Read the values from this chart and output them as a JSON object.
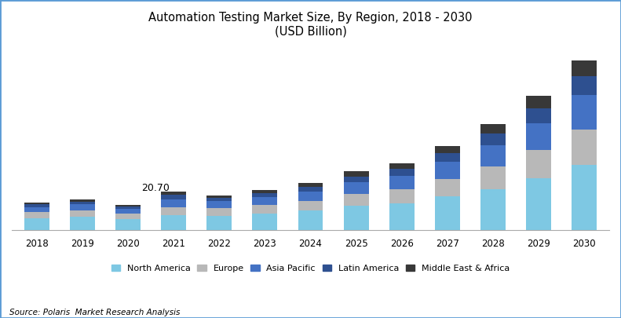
{
  "years": [
    "2018",
    "2019",
    "2020",
    "2021",
    "2022",
    "2023",
    "2024",
    "2025",
    "2026",
    "2027",
    "2028",
    "2029",
    "2030"
  ],
  "north_america": [
    6.5,
    7.2,
    6.0,
    8.3,
    7.8,
    9.0,
    10.5,
    13.0,
    14.5,
    18.0,
    22.0,
    28.0,
    35.0
  ],
  "europe": [
    3.2,
    3.5,
    3.0,
    4.2,
    3.9,
    4.5,
    5.2,
    6.5,
    7.5,
    9.5,
    12.0,
    15.0,
    19.0
  ],
  "asia_pacific": [
    2.8,
    3.1,
    2.6,
    4.2,
    3.8,
    4.2,
    5.0,
    6.2,
    7.0,
    9.0,
    11.5,
    14.5,
    18.5
  ],
  "latin_america": [
    1.3,
    1.5,
    1.2,
    2.2,
    1.8,
    2.1,
    2.5,
    3.1,
    3.8,
    4.8,
    6.2,
    7.8,
    10.0
  ],
  "mea": [
    1.0,
    1.2,
    0.9,
    1.8,
    1.5,
    1.8,
    2.2,
    2.7,
    3.2,
    4.0,
    5.3,
    6.7,
    8.5
  ],
  "annotation_year": "2021",
  "annotation_text": "20.70",
  "colors": {
    "north_america": "#7EC8E3",
    "europe": "#B8B8B8",
    "asia_pacific": "#4472C4",
    "latin_america": "#2E5090",
    "mea": "#383838"
  },
  "title_line1": "Automation Testing Market Size, By Region, 2018 - 2030",
  "title_line2": "(USD Billion)",
  "legend_labels": [
    "North America",
    "Europe",
    "Asia Pacific",
    "Latin America",
    "Middle East & Africa"
  ],
  "source_text": "Source: Polaris  Market Research Analysis",
  "bar_width": 0.55,
  "ylim_max": 100,
  "title_fontsize": 10.5,
  "axis_fontsize": 8.5,
  "legend_fontsize": 8,
  "source_fontsize": 7.5,
  "background_color": "#FFFFFF",
  "border_color": "#5B9BD5"
}
